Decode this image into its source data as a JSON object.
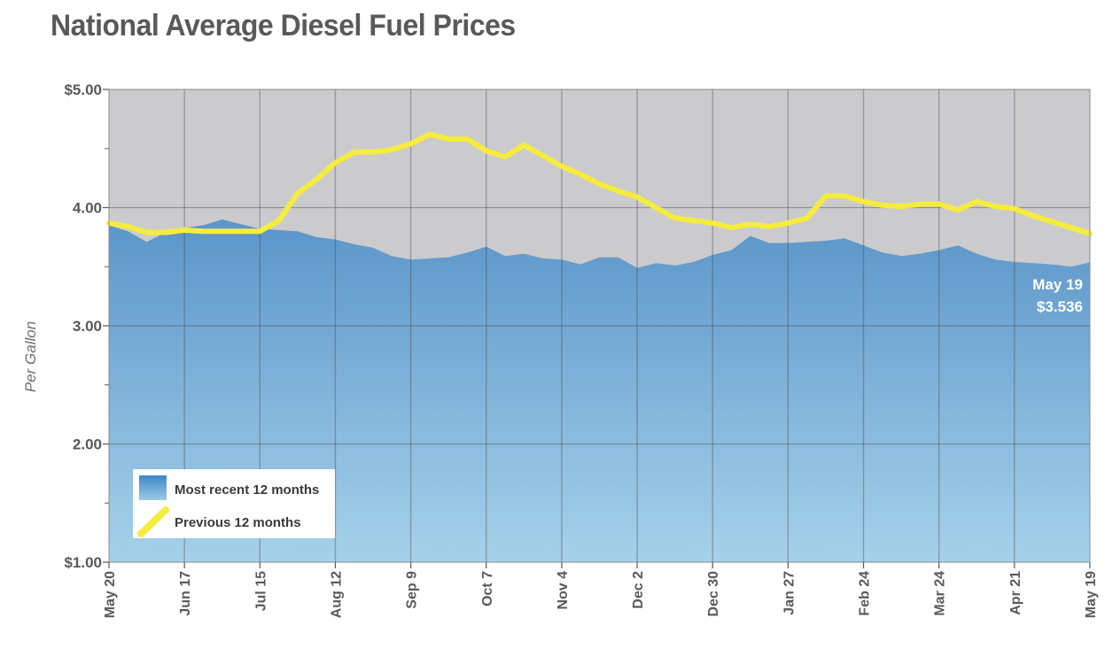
{
  "chart_data": {
    "type": "area",
    "title": "National Average Diesel Fuel Prices",
    "ylabel": "Per Gallon",
    "xlabel": "",
    "ylim": [
      1.0,
      5.0
    ],
    "y_tick_labels": [
      "$1.00",
      "2.00",
      "3.00",
      "4.00",
      "$5.00"
    ],
    "y_tick_values": [
      1.0,
      2.0,
      3.0,
      4.0,
      5.0
    ],
    "x_tick_labels": [
      "May 20",
      "Jun 17",
      "Jul 15",
      "Aug 12",
      "Sep 9",
      "Oct 7",
      "Nov 4",
      "Dec 2",
      "Dec 30",
      "Jan 27",
      "Feb 24",
      "Mar 24",
      "Apr 21",
      "May 19"
    ],
    "x_tick_week_index": [
      0,
      4,
      8,
      12,
      16,
      20,
      24,
      28,
      32,
      36,
      40,
      44,
      48,
      52
    ],
    "grid": true,
    "legend_position": "bottom-left",
    "series": [
      {
        "name": "Most recent 12 months",
        "style": "area",
        "color": "#5b95c9",
        "week_index": [
          0,
          1,
          2,
          3,
          4,
          5,
          6,
          7,
          8,
          9,
          10,
          11,
          12,
          13,
          14,
          15,
          16,
          17,
          18,
          19,
          20,
          21,
          22,
          23,
          24,
          25,
          26,
          27,
          28,
          29,
          30,
          31,
          32,
          33,
          34,
          35,
          36,
          37,
          38,
          39,
          40,
          41,
          42,
          43,
          44,
          45,
          46,
          47,
          48,
          49,
          50,
          51,
          52
        ],
        "values": [
          3.85,
          3.8,
          3.71,
          3.79,
          3.83,
          3.85,
          3.9,
          3.86,
          3.82,
          3.81,
          3.8,
          3.75,
          3.73,
          3.69,
          3.66,
          3.59,
          3.56,
          3.57,
          3.58,
          3.62,
          3.67,
          3.59,
          3.61,
          3.57,
          3.56,
          3.52,
          3.58,
          3.58,
          3.49,
          3.53,
          3.51,
          3.54,
          3.6,
          3.64,
          3.76,
          3.7,
          3.7,
          3.71,
          3.72,
          3.74,
          3.68,
          3.62,
          3.59,
          3.61,
          3.64,
          3.68,
          3.61,
          3.56,
          3.54,
          3.53,
          3.52,
          3.5,
          3.536
        ]
      },
      {
        "name": "Previous 12 months",
        "style": "line",
        "color": "#f5ec3e",
        "week_index": [
          0,
          1,
          2,
          3,
          4,
          5,
          6,
          7,
          8,
          9,
          10,
          11,
          12,
          13,
          14,
          15,
          16,
          17,
          18,
          19,
          20,
          21,
          22,
          23,
          24,
          25,
          26,
          27,
          28,
          29,
          30,
          31,
          32,
          33,
          34,
          35,
          36,
          37,
          38,
          39,
          40,
          41,
          42,
          43,
          44,
          45,
          46,
          47,
          48,
          49,
          50,
          51,
          52
        ],
        "values": [
          3.87,
          3.84,
          3.79,
          3.79,
          3.81,
          3.8,
          3.8,
          3.8,
          3.8,
          3.89,
          4.12,
          4.24,
          4.38,
          4.47,
          4.47,
          4.49,
          4.54,
          4.62,
          4.58,
          4.58,
          4.48,
          4.43,
          4.53,
          4.44,
          4.35,
          4.28,
          4.2,
          4.14,
          4.09,
          4.0,
          3.91,
          3.89,
          3.87,
          3.83,
          3.86,
          3.84,
          3.87,
          3.91,
          4.1,
          4.1,
          4.05,
          4.02,
          4.01,
          4.03,
          4.03,
          3.98,
          4.05,
          4.01,
          3.99,
          3.93,
          3.88,
          3.83,
          3.78
        ]
      }
    ],
    "annotation": {
      "line1": "May 19",
      "line2": "$3.536"
    },
    "colors": {
      "plot_background": "#cbcbcd",
      "area_top": "#5b95c9",
      "area_bottom": "#a6d1ea",
      "line": "#f5ec3e",
      "grid": "#3d3d3f",
      "text": "#58595b"
    }
  }
}
